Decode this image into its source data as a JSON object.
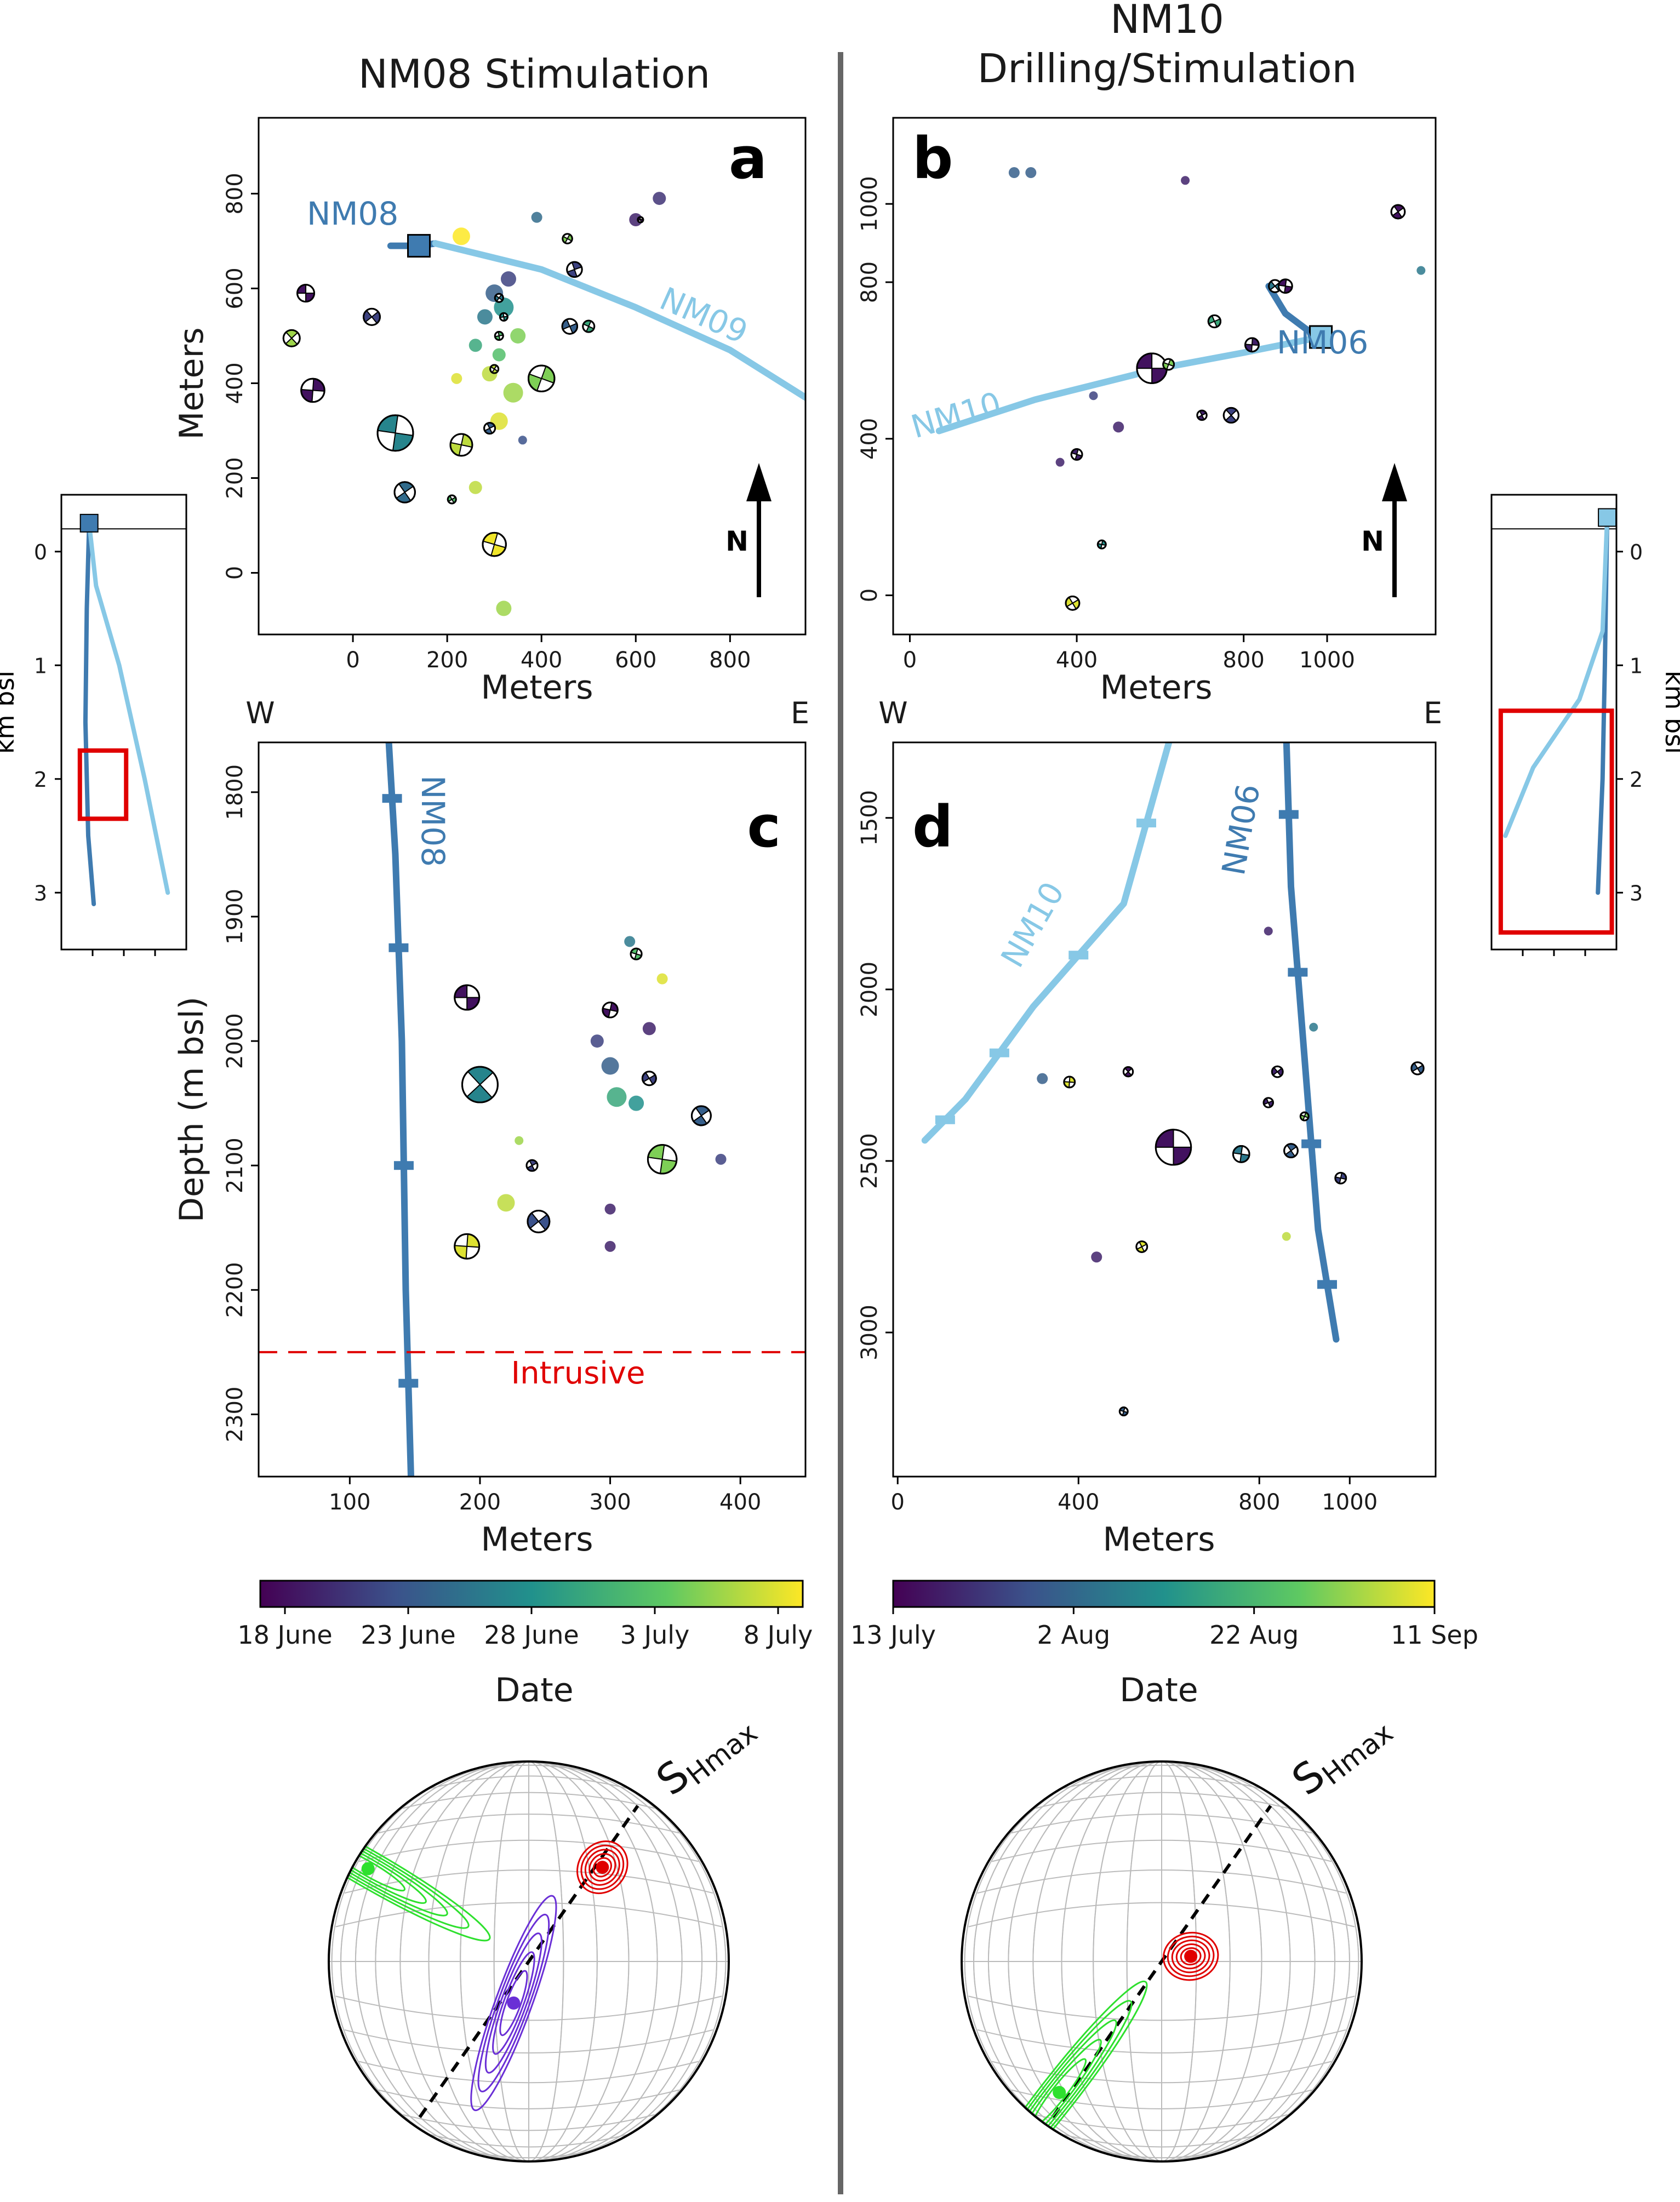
{
  "titles": {
    "left": "NM08 Stimulation",
    "right_line1": "NM10",
    "right_line2": "Drilling/Stimulation"
  },
  "panels": {
    "a": {
      "label": "a",
      "xlabel": "Meters",
      "ylabel": "Meters",
      "north": "N"
    },
    "b": {
      "label": "b",
      "xlabel": "Meters",
      "north": "N"
    },
    "c": {
      "label": "c",
      "xlabel": "Meters",
      "ylabel": "Depth (m bsl)",
      "west": "W",
      "east": "E",
      "intrusive": "Intrusive"
    },
    "d": {
      "label": "d",
      "xlabel": "Meters",
      "west": "W",
      "east": "E"
    }
  },
  "insets": {
    "ylabel": "km bsl"
  },
  "colorbars": {
    "left": {
      "ticks": [
        "18 June",
        "23 June",
        "28 June",
        "3 July",
        "8 July"
      ],
      "label": "Date"
    },
    "right": {
      "ticks": [
        "13 July",
        "2 Aug",
        "22 Aug",
        "11 Sep"
      ],
      "label": "Date"
    }
  },
  "stereonets": {
    "label": "SHmax",
    "main": "S",
    "sub": "Hmax"
  },
  "colors": {
    "dark_blue": "#3f7bb0",
    "light_blue": "#87c8e6",
    "red": "#e00000",
    "green": "#2ee02e",
    "purple": "#6a2fd6",
    "viridis": [
      "#440154",
      "#3b528b",
      "#21918c",
      "#5ec962",
      "#fde725"
    ]
  },
  "chart_data": [
    {
      "panel": "a",
      "type": "scatter",
      "title": "NM08 Stimulation",
      "xlabel": "Meters",
      "ylabel": "Meters",
      "xlim": [
        -200,
        960
      ],
      "ylim": [
        -130,
        960
      ],
      "xticks": [
        0,
        200,
        400,
        600,
        800
      ],
      "yticks": [
        0,
        200,
        400,
        600,
        800
      ],
      "wells": [
        {
          "name": "NM08",
          "color": "#3f7bb0",
          "x": [
            80,
            140,
            175
          ],
          "y": [
            690,
            690,
            695
          ],
          "wellhead": [
            140,
            690
          ]
        },
        {
          "name": "NM09",
          "color": "#87c8e6",
          "x": [
            175,
            400,
            600,
            800,
            960
          ],
          "y": [
            695,
            640,
            560,
            470,
            370
          ]
        }
      ],
      "events": [
        {
          "x": 300,
          "y": 590,
          "t": 0.3,
          "s": 16
        },
        {
          "x": 320,
          "y": 560,
          "t": 0.5,
          "s": 18
        },
        {
          "x": 280,
          "y": 540,
          "t": 0.4,
          "s": 14
        },
        {
          "x": 330,
          "y": 620,
          "t": 0.2,
          "s": 14
        },
        {
          "x": 260,
          "y": 480,
          "t": 0.6,
          "s": 12
        },
        {
          "x": 350,
          "y": 500,
          "t": 0.8,
          "s": 14
        },
        {
          "x": 310,
          "y": 460,
          "t": 0.7,
          "s": 12
        },
        {
          "x": 290,
          "y": 420,
          "t": 0.9,
          "s": 14
        },
        {
          "x": 340,
          "y": 380,
          "t": 0.85,
          "s": 18
        },
        {
          "x": 310,
          "y": 320,
          "t": 0.95,
          "s": 16
        },
        {
          "x": 230,
          "y": 710,
          "t": 1.0,
          "s": 16
        },
        {
          "x": 600,
          "y": 745,
          "t": 0.1,
          "s": 12
        },
        {
          "x": 650,
          "y": 790,
          "t": 0.15,
          "s": 12
        },
        {
          "x": 390,
          "y": 750,
          "t": 0.35,
          "s": 10
        },
        {
          "x": 320,
          "y": -75,
          "t": 0.85,
          "s": 14
        },
        {
          "x": 260,
          "y": 180,
          "t": 0.9,
          "s": 12
        },
        {
          "x": 220,
          "y": 410,
          "t": 0.95,
          "s": 10
        },
        {
          "x": 360,
          "y": 280,
          "t": 0.25,
          "s": 8
        }
      ],
      "focal_mechanisms": [
        {
          "x": -100,
          "y": 590,
          "t": 0.05,
          "r": 0.62
        },
        {
          "x": -130,
          "y": 495,
          "t": 0.85,
          "r": 0.6
        },
        {
          "x": -85,
          "y": 385,
          "t": 0.05,
          "r": 0.85
        },
        {
          "x": 40,
          "y": 540,
          "t": 0.2,
          "r": 0.6
        },
        {
          "x": 90,
          "y": 295,
          "t": 0.45,
          "r": 1.3
        },
        {
          "x": 110,
          "y": 170,
          "t": 0.35,
          "r": 0.75
        },
        {
          "x": 230,
          "y": 270,
          "t": 0.9,
          "r": 0.8
        },
        {
          "x": 210,
          "y": 155,
          "t": 0.7,
          "r": 0.3
        },
        {
          "x": 300,
          "y": 60,
          "t": 0.98,
          "r": 0.85
        },
        {
          "x": 290,
          "y": 305,
          "t": 0.3,
          "r": 0.4
        },
        {
          "x": 400,
          "y": 410,
          "t": 0.8,
          "r": 0.95
        },
        {
          "x": 460,
          "y": 520,
          "t": 0.3,
          "r": 0.55
        },
        {
          "x": 500,
          "y": 520,
          "t": 0.6,
          "r": 0.42
        },
        {
          "x": 470,
          "y": 640,
          "t": 0.2,
          "r": 0.55
        },
        {
          "x": 455,
          "y": 705,
          "t": 0.8,
          "r": 0.35
        },
        {
          "x": 610,
          "y": 745,
          "t": 0.05,
          "r": 0.2
        },
        {
          "x": 300,
          "y": 430,
          "t": 0.9,
          "r": 0.3
        },
        {
          "x": 310,
          "y": 500,
          "t": 0.7,
          "r": 0.3
        },
        {
          "x": 310,
          "y": 580,
          "t": 0.4,
          "r": 0.3
        },
        {
          "x": 320,
          "y": 540,
          "t": 0.5,
          "r": 0.28
        }
      ]
    },
    {
      "panel": "b",
      "type": "scatter",
      "title": "NM10 Drilling/Stimulation",
      "xlabel": "Meters",
      "xlim": [
        -40,
        1260
      ],
      "ylim": [
        -100,
        1220
      ],
      "xticks": [
        0,
        400,
        800,
        1000
      ],
      "yticks": [
        0,
        400,
        800,
        1000
      ],
      "wells": [
        {
          "name": "NM06",
          "color": "#3f7bb0",
          "x": [
            860,
            900,
            950,
            985
          ],
          "y": [
            790,
            720,
            680,
            660
          ],
          "wellhead": [
            985,
            660
          ]
        },
        {
          "name": "NM10",
          "color": "#87c8e6",
          "x": [
            70,
            300,
            600,
            800,
            985
          ],
          "y": [
            420,
            500,
            580,
            620,
            660
          ],
          "wellhead": [
            985,
            660
          ]
        }
      ],
      "events": [
        {
          "x": 250,
          "y": 1080,
          "t": 0.3,
          "s": 10
        },
        {
          "x": 290,
          "y": 1080,
          "t": 0.3,
          "s": 10
        },
        {
          "x": 660,
          "y": 1060,
          "t": 0.1,
          "s": 8
        },
        {
          "x": 1225,
          "y": 830,
          "t": 0.4,
          "s": 8
        },
        {
          "x": 500,
          "y": 430,
          "t": 0.1,
          "s": 10
        },
        {
          "x": 360,
          "y": 340,
          "t": 0.1,
          "s": 8
        },
        {
          "x": 440,
          "y": 510,
          "t": 0.2,
          "s": 8
        }
      ],
      "focal_mechanisms": [
        {
          "x": 580,
          "y": 580,
          "t": 0.05,
          "r": 1.1
        },
        {
          "x": 770,
          "y": 460,
          "t": 0.2,
          "r": 0.55
        },
        {
          "x": 820,
          "y": 640,
          "t": 0.1,
          "r": 0.5
        },
        {
          "x": 875,
          "y": 790,
          "t": 0.4,
          "r": 0.45
        },
        {
          "x": 900,
          "y": 790,
          "t": 0.05,
          "r": 0.5
        },
        {
          "x": 1170,
          "y": 980,
          "t": 0.05,
          "r": 0.5
        },
        {
          "x": 460,
          "y": 130,
          "t": 0.5,
          "r": 0.3
        },
        {
          "x": 390,
          "y": -20,
          "t": 0.95,
          "r": 0.5
        },
        {
          "x": 400,
          "y": 360,
          "t": 0.1,
          "r": 0.4
        },
        {
          "x": 700,
          "y": 460,
          "t": 0.1,
          "r": 0.35
        },
        {
          "x": 620,
          "y": 590,
          "t": 0.8,
          "r": 0.4
        },
        {
          "x": 730,
          "y": 700,
          "t": 0.6,
          "r": 0.45
        }
      ]
    },
    {
      "panel": "c",
      "type": "scatter",
      "xlabel": "Meters",
      "ylabel": "Depth (m bsl)",
      "xlim": [
        30,
        450
      ],
      "ylim": [
        2350,
        1760
      ],
      "y_inverted": true,
      "xticks": [
        100,
        200,
        300,
        400
      ],
      "yticks": [
        1800,
        1900,
        2000,
        2100,
        2200,
        2300
      ],
      "wells": [
        {
          "name": "NM08",
          "color": "#3f7bb0",
          "x": [
            130,
            135,
            140,
            143,
            147
          ],
          "y": [
            1760,
            1850,
            2000,
            2200,
            2350
          ]
        }
      ],
      "intrusive_depth": 2250,
      "events": [
        {
          "x": 300,
          "y": 2020,
          "t": 0.3,
          "s": 16
        },
        {
          "x": 305,
          "y": 2045,
          "t": 0.6,
          "s": 18
        },
        {
          "x": 320,
          "y": 2050,
          "t": 0.5,
          "s": 14
        },
        {
          "x": 290,
          "y": 2000,
          "t": 0.2,
          "s": 12
        },
        {
          "x": 330,
          "y": 1990,
          "t": 0.1,
          "s": 12
        },
        {
          "x": 340,
          "y": 1950,
          "t": 0.95,
          "s": 10
        },
        {
          "x": 315,
          "y": 1920,
          "t": 0.4,
          "s": 10
        },
        {
          "x": 220,
          "y": 2130,
          "t": 0.9,
          "s": 16
        },
        {
          "x": 300,
          "y": 2135,
          "t": 0.1,
          "s": 10
        },
        {
          "x": 300,
          "y": 2165,
          "t": 0.1,
          "s": 10
        },
        {
          "x": 385,
          "y": 2095,
          "t": 0.2,
          "s": 10
        },
        {
          "x": 230,
          "y": 2080,
          "t": 0.85,
          "s": 8
        }
      ],
      "focal_mechanisms": [
        {
          "x": 190,
          "y": 1965,
          "t": 0.05,
          "r": 0.9
        },
        {
          "x": 200,
          "y": 2035,
          "t": 0.45,
          "r": 1.3
        },
        {
          "x": 190,
          "y": 2165,
          "t": 0.95,
          "r": 0.9
        },
        {
          "x": 245,
          "y": 2145,
          "t": 0.25,
          "r": 0.8
        },
        {
          "x": 340,
          "y": 2095,
          "t": 0.8,
          "r": 1.05
        },
        {
          "x": 370,
          "y": 2060,
          "t": 0.3,
          "r": 0.7
        },
        {
          "x": 300,
          "y": 1975,
          "t": 0.05,
          "r": 0.55
        },
        {
          "x": 330,
          "y": 2030,
          "t": 0.2,
          "r": 0.5
        },
        {
          "x": 320,
          "y": 1930,
          "t": 0.7,
          "r": 0.4
        },
        {
          "x": 240,
          "y": 2100,
          "t": 0.2,
          "r": 0.4
        }
      ]
    },
    {
      "panel": "d",
      "type": "scatter",
      "xlabel": "Meters",
      "xlim": [
        -10,
        1190
      ],
      "ylim": [
        3420,
        1280
      ],
      "y_inverted": true,
      "xticks": [
        0,
        400,
        800,
        1000
      ],
      "yticks": [
        1500,
        2000,
        2500,
        3000
      ],
      "wells": [
        {
          "name": "NM10",
          "color": "#87c8e6",
          "x": [
            60,
            150,
            300,
            500,
            600
          ],
          "y": [
            2440,
            2320,
            2050,
            1750,
            1280
          ]
        },
        {
          "name": "NM06",
          "color": "#3f7bb0",
          "x": [
            970,
            930,
            900,
            870,
            860
          ],
          "y": [
            3020,
            2700,
            2200,
            1700,
            1280
          ]
        }
      ],
      "events": [
        {
          "x": 820,
          "y": 1830,
          "t": 0.1,
          "s": 8
        },
        {
          "x": 920,
          "y": 2110,
          "t": 0.4,
          "s": 8
        },
        {
          "x": 1200,
          "y": 2060,
          "t": 0.4,
          "s": 8
        },
        {
          "x": 320,
          "y": 2260,
          "t": 0.3,
          "s": 10
        },
        {
          "x": 440,
          "y": 2780,
          "t": 0.1,
          "s": 10
        },
        {
          "x": 860,
          "y": 2720,
          "t": 0.9,
          "s": 8
        }
      ],
      "focal_mechanisms": [
        {
          "x": 610,
          "y": 2460,
          "t": 0.05,
          "r": 1.3
        },
        {
          "x": 510,
          "y": 2240,
          "t": 0.05,
          "r": 0.35
        },
        {
          "x": 380,
          "y": 2270,
          "t": 0.95,
          "r": 0.4
        },
        {
          "x": 840,
          "y": 2240,
          "t": 0.1,
          "r": 0.4
        },
        {
          "x": 760,
          "y": 2480,
          "t": 0.4,
          "r": 0.6
        },
        {
          "x": 870,
          "y": 2470,
          "t": 0.3,
          "r": 0.5
        },
        {
          "x": 980,
          "y": 2550,
          "t": 0.2,
          "r": 0.4
        },
        {
          "x": 1150,
          "y": 2230,
          "t": 0.3,
          "r": 0.45
        },
        {
          "x": 500,
          "y": 3230,
          "t": 0.3,
          "r": 0.3
        },
        {
          "x": 540,
          "y": 2750,
          "t": 0.95,
          "r": 0.4
        },
        {
          "x": 900,
          "y": 2370,
          "t": 0.8,
          "r": 0.3
        },
        {
          "x": 820,
          "y": 2330,
          "t": 0.1,
          "r": 0.35
        }
      ]
    },
    {
      "panel": "inset-left",
      "type": "line",
      "ylabel": "km bsl",
      "ylim": [
        3.5,
        -0.5
      ],
      "yticks": [
        0,
        1,
        2,
        3
      ],
      "wells": [
        {
          "name": "NM08",
          "color": "#3f7bb0",
          "x": [
            0.3,
            0.25,
            0.22,
            0.28,
            0.4
          ],
          "y": [
            -0.25,
            0.5,
            1.5,
            2.5,
            3.1
          ]
        },
        {
          "name": "NM09",
          "color": "#87c8e6",
          "x": [
            0.3,
            0.45,
            0.95,
            1.5,
            2.0
          ],
          "y": [
            -0.25,
            0.3,
            1.0,
            2.0,
            3.0
          ]
        }
      ],
      "box": {
        "x0": 0.1,
        "x1": 1.1,
        "y0": 1.75,
        "y1": 2.35
      }
    },
    {
      "panel": "inset-right",
      "type": "line",
      "ylabel": "km bsl",
      "ylim": [
        3.5,
        -0.5
      ],
      "yticks": [
        0,
        1,
        2,
        3
      ],
      "wells": [
        {
          "name": "NM06",
          "color": "#3f7bb0",
          "x": [
            2.2,
            2.15,
            2.1,
            2.0
          ],
          "y": [
            -0.3,
            1.0,
            2.0,
            3.0
          ]
        },
        {
          "name": "NM10",
          "color": "#87c8e6",
          "x": [
            2.2,
            2.1,
            1.6,
            0.6,
            0.0
          ],
          "y": [
            -0.3,
            0.7,
            1.3,
            1.9,
            2.5
          ]
        }
      ],
      "box": {
        "x0": -0.1,
        "x1": 2.3,
        "y0": 1.4,
        "y1": 3.35
      }
    },
    {
      "panel": "stereonet-left",
      "type": "scatter",
      "label": "SHmax",
      "shmax_azimuth": 35,
      "poles": [
        {
          "name": "red",
          "color": "#e00000",
          "trend": 38,
          "plunge": 40
        },
        {
          "name": "purple",
          "color": "#6a2fd6",
          "trend": 200,
          "plunge": 72
        },
        {
          "name": "green",
          "color": "#2ee02e",
          "trend": 300,
          "plunge": 8
        }
      ]
    },
    {
      "panel": "stereonet-right",
      "type": "scatter",
      "label": "SHmax",
      "shmax_azimuth": 35,
      "poles": [
        {
          "name": "red",
          "color": "#e00000",
          "trend": 80,
          "plunge": 78
        },
        {
          "name": "green",
          "color": "#2ee02e",
          "trend": 218,
          "plunge": 18
        }
      ]
    }
  ]
}
